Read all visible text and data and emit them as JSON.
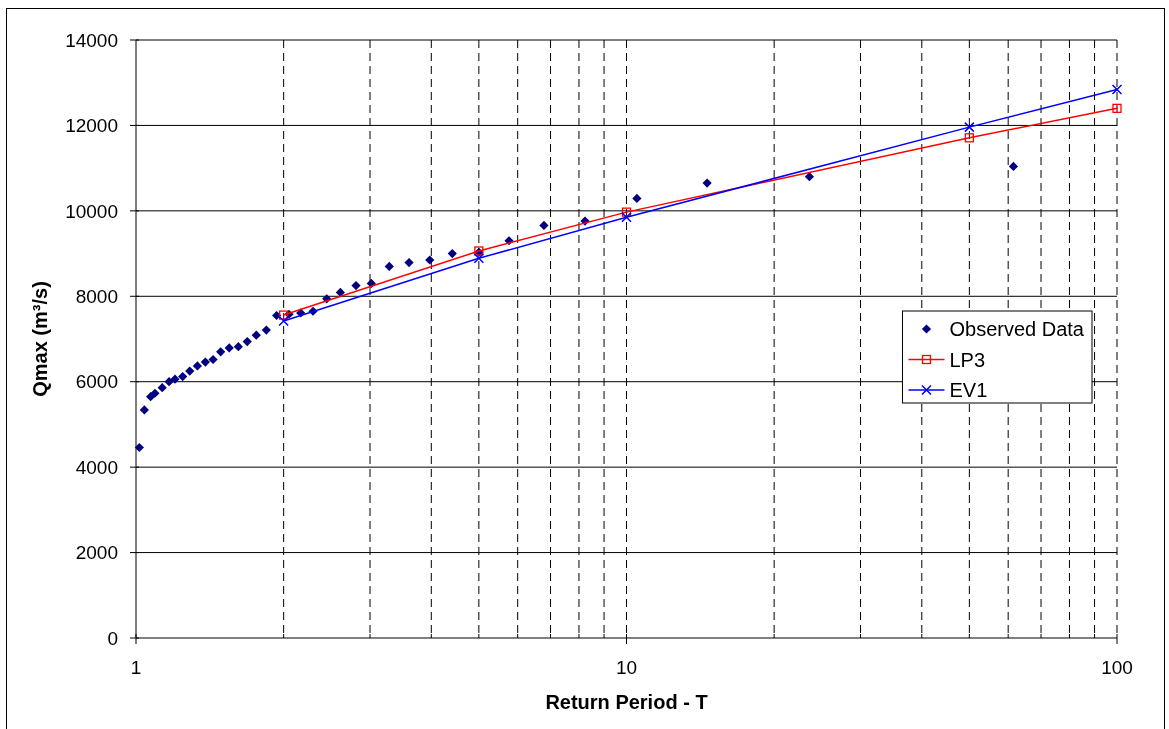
{
  "chart_data": {
    "type": "scatter",
    "xlabel": "Return Period - T",
    "ylabel": "Qmax (m³/s)",
    "log": "x",
    "xlim": [
      1,
      100
    ],
    "ylim": [
      0,
      14000
    ],
    "xticks": [
      1,
      {
        "value": 2,
        "label": null
      },
      {
        "value": 3,
        "label": null
      },
      {
        "value": 4,
        "label": null
      },
      {
        "value": 5,
        "label": null
      },
      {
        "value": 6,
        "label": null
      },
      {
        "value": 7,
        "label": null
      },
      {
        "value": 8,
        "label": null
      },
      {
        "value": 9,
        "label": null
      },
      10,
      {
        "value": 20,
        "label": null
      },
      {
        "value": 30,
        "label": null
      },
      {
        "value": 40,
        "label": null
      },
      {
        "value": 50,
        "label": null
      },
      {
        "value": 60,
        "label": null
      },
      {
        "value": 70,
        "label": null
      },
      {
        "value": 80,
        "label": null
      },
      {
        "value": 90,
        "label": null
      },
      100
    ],
    "yticks": [
      0,
      2000,
      4000,
      6000,
      8000,
      10000,
      12000,
      14000
    ],
    "grid": true,
    "legend": "right",
    "series": [
      {
        "name": "Observed Data",
        "marker": "diamond",
        "color": "#000080",
        "x": [
          1.016,
          1.04,
          1.071,
          1.093,
          1.131,
          1.168,
          1.201,
          1.245,
          1.287,
          1.334,
          1.385,
          1.436,
          1.488,
          1.549,
          1.617,
          1.686,
          1.759,
          1.844,
          1.935,
          2.051,
          2.167,
          2.296,
          2.448,
          2.61,
          2.809,
          3.018,
          3.284,
          3.603,
          3.971,
          4.414,
          5.0,
          5.761,
          6.788,
          8.231,
          10.5,
          14.6,
          23.6,
          61.5
        ],
        "values": [
          4460,
          5340,
          5650,
          5730,
          5860,
          6000,
          6060,
          6120,
          6250,
          6370,
          6460,
          6520,
          6700,
          6790,
          6820,
          6940,
          7090,
          7210,
          7550,
          7580,
          7610,
          7650,
          7940,
          8090,
          8250,
          8300,
          8700,
          8790,
          8850,
          9000,
          9030,
          9300,
          9660,
          9760,
          10290,
          10650,
          10800,
          11040
        ]
      },
      {
        "name": "LP3",
        "type": "line",
        "marker": "square",
        "color": "#ff0000",
        "x": [
          2,
          5,
          10,
          50,
          100
        ],
        "values": [
          7560,
          9060,
          9970,
          11710,
          12400
        ]
      },
      {
        "name": "EV1",
        "type": "line",
        "marker": "cross",
        "color": "#0000ff",
        "x": [
          2,
          5,
          10,
          50,
          100
        ],
        "values": [
          7420,
          8890,
          9850,
          11960,
          12840
        ]
      }
    ]
  }
}
